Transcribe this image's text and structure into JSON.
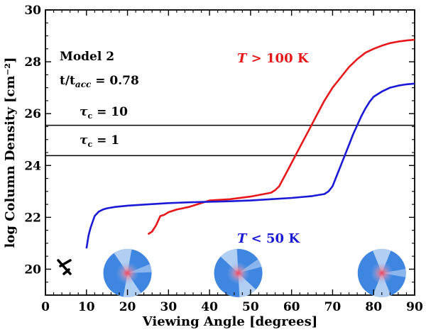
{
  "chart_data": {
    "type": "line",
    "title": "",
    "xlabel": "Viewing Angle [degrees]",
    "ylabel": "log Column Density [cm⁻²]",
    "xlim": [
      0,
      90
    ],
    "ylim": [
      19,
      30
    ],
    "x_ticks": [
      0,
      10,
      20,
      30,
      40,
      50,
      60,
      70,
      80,
      90
    ],
    "y_ticks": [
      20,
      22,
      24,
      26,
      28,
      30
    ],
    "grid": false,
    "series": [
      {
        "name": "T > 100 K",
        "color": "#e8171a",
        "x": [
          25,
          26,
          27,
          28,
          29,
          30,
          32,
          35,
          38,
          40,
          45,
          50,
          55,
          56,
          57,
          58,
          59,
          60,
          61,
          62,
          63,
          64,
          65,
          66,
          67,
          68,
          70,
          72,
          74,
          76,
          78,
          80,
          82,
          84,
          86,
          88,
          90
        ],
        "y": [
          21.35,
          21.45,
          21.7,
          22.05,
          22.1,
          22.2,
          22.3,
          22.4,
          22.55,
          22.65,
          22.7,
          22.8,
          22.95,
          23.05,
          23.2,
          23.5,
          23.8,
          24.1,
          24.4,
          24.7,
          25.0,
          25.3,
          25.6,
          25.9,
          26.2,
          26.5,
          27.0,
          27.4,
          27.8,
          28.1,
          28.35,
          28.5,
          28.62,
          28.72,
          28.78,
          28.82,
          28.85
        ]
      },
      {
        "name": "T < 50 K",
        "color": "#1a1ad6",
        "x": [
          10,
          10.5,
          11,
          12,
          13,
          14,
          15,
          17,
          20,
          25,
          30,
          35,
          40,
          45,
          50,
          55,
          60,
          65,
          68,
          69,
          70,
          71,
          72,
          73,
          74,
          75,
          76,
          77,
          78,
          79,
          80,
          82,
          84,
          86,
          88,
          90
        ],
        "y": [
          20.8,
          21.3,
          21.6,
          22.05,
          22.22,
          22.3,
          22.35,
          22.4,
          22.45,
          22.5,
          22.55,
          22.58,
          22.6,
          22.62,
          22.65,
          22.7,
          22.75,
          22.82,
          22.9,
          23.0,
          23.2,
          23.6,
          24.0,
          24.4,
          24.8,
          25.2,
          25.55,
          25.9,
          26.2,
          26.45,
          26.65,
          26.85,
          27.0,
          27.08,
          27.13,
          27.16
        ]
      }
    ],
    "hlines": [
      {
        "y": 25.55,
        "label": "τc = 10"
      },
      {
        "y": 24.38,
        "label": "τc = 1"
      }
    ],
    "annotations": {
      "model": "Model 2",
      "time": "t/tacc = 0.78",
      "hot_label": "T > 100 K",
      "cold_label": "T < 50 K"
    },
    "insets": [
      {
        "name": "disk-view-20deg",
        "angle": 20
      },
      {
        "name": "disk-view-47deg",
        "angle": 47
      },
      {
        "name": "disk-view-82deg",
        "angle": 82
      }
    ],
    "observer_icon": "telescope-observer-icon"
  }
}
